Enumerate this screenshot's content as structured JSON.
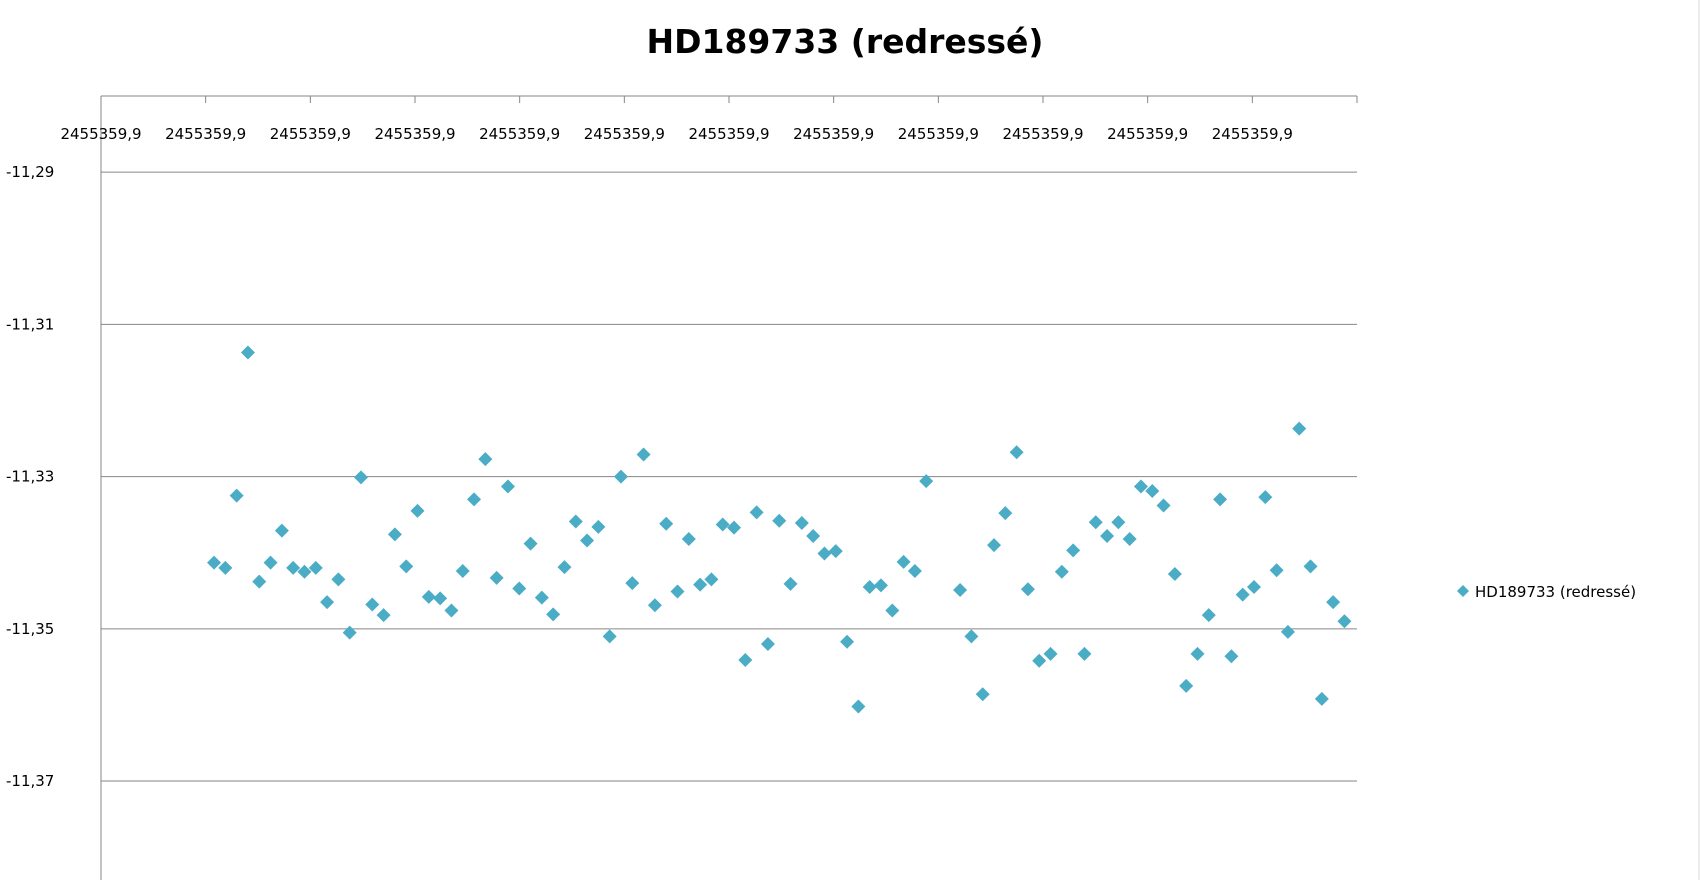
{
  "colors": {
    "marker": "#4bacc6",
    "gridline": "#868686",
    "axis": "#868686",
    "border": "#d9d9d9"
  },
  "marker_icon": "diamond",
  "chart_data": {
    "type": "scatter",
    "title": "HD189733 (redressé)",
    "xlabel": "",
    "ylabel": "",
    "grid": true,
    "legend_position": "right",
    "x_tick_labels": [
      "2455359,9",
      "2455359,9",
      "2455359,9",
      "2455359,9",
      "2455359,9",
      "2455359,9",
      "2455359,9",
      "2455359,9",
      "2455359,9",
      "2455359,9",
      "2455359,9",
      "2455359,9"
    ],
    "y_tick_labels": [
      "-11,29",
      "-11,31",
      "-11,33",
      "-11,35",
      "-11,37"
    ],
    "ylim": [
      -11.383,
      -11.28
    ],
    "xlim": [
      0,
      1
    ],
    "series": [
      {
        "name": "HD189733 (redressé)",
        "marker": "diamond",
        "points": [
          [
            0.09,
            -11.3413
          ],
          [
            0.099,
            -11.342
          ],
          [
            0.108,
            -11.3325
          ],
          [
            0.117,
            -11.3137
          ],
          [
            0.126,
            -11.3438
          ],
          [
            0.135,
            -11.3413
          ],
          [
            0.144,
            -11.3371
          ],
          [
            0.153,
            -11.342
          ],
          [
            0.162,
            -11.3425
          ],
          [
            0.171,
            -11.342
          ],
          [
            0.18,
            -11.3465
          ],
          [
            0.189,
            -11.3435
          ],
          [
            0.198,
            -11.3505
          ],
          [
            0.207,
            -11.3301
          ],
          [
            0.216,
            -11.3468
          ],
          [
            0.225,
            -11.3482
          ],
          [
            0.234,
            -11.3376
          ],
          [
            0.243,
            -11.3418
          ],
          [
            0.252,
            -11.3345
          ],
          [
            0.261,
            -11.3458
          ],
          [
            0.27,
            -11.346
          ],
          [
            0.279,
            -11.3476
          ],
          [
            0.288,
            -11.3424
          ],
          [
            0.297,
            -11.333
          ],
          [
            0.306,
            -11.3277
          ],
          [
            0.315,
            -11.3433
          ],
          [
            0.324,
            -11.3313
          ],
          [
            0.333,
            -11.3447
          ],
          [
            0.342,
            -11.3388
          ],
          [
            0.351,
            -11.3459
          ],
          [
            0.36,
            -11.3481
          ],
          [
            0.369,
            -11.3419
          ],
          [
            0.378,
            -11.3359
          ],
          [
            0.387,
            -11.3384
          ],
          [
            0.396,
            -11.3366
          ],
          [
            0.405,
            -11.351
          ],
          [
            0.414,
            -11.33
          ],
          [
            0.423,
            -11.344
          ],
          [
            0.432,
            -11.3271
          ],
          [
            0.441,
            -11.3469
          ],
          [
            0.45,
            -11.3362
          ],
          [
            0.459,
            -11.3451
          ],
          [
            0.468,
            -11.3382
          ],
          [
            0.477,
            -11.3442
          ],
          [
            0.486,
            -11.3435
          ],
          [
            0.495,
            -11.3363
          ],
          [
            0.504,
            -11.3367
          ],
          [
            0.513,
            -11.3541
          ],
          [
            0.522,
            -11.3347
          ],
          [
            0.531,
            -11.352
          ],
          [
            0.54,
            -11.3358
          ],
          [
            0.549,
            -11.3441
          ],
          [
            0.558,
            -11.3361
          ],
          [
            0.567,
            -11.3378
          ],
          [
            0.576,
            -11.3401
          ],
          [
            0.585,
            -11.3398
          ],
          [
            0.594,
            -11.3517
          ],
          [
            0.603,
            -11.3602
          ],
          [
            0.612,
            -11.3445
          ],
          [
            0.621,
            -11.3443
          ],
          [
            0.63,
            -11.3476
          ],
          [
            0.639,
            -11.3412
          ],
          [
            0.648,
            -11.3424
          ],
          [
            0.657,
            -11.3306
          ],
          [
            0.684,
            -11.3449
          ],
          [
            0.693,
            -11.351
          ],
          [
            0.702,
            -11.3586
          ],
          [
            0.711,
            -11.339
          ],
          [
            0.72,
            -11.3348
          ],
          [
            0.729,
            -11.3268
          ],
          [
            0.738,
            -11.3448
          ],
          [
            0.747,
            -11.3542
          ],
          [
            0.756,
            -11.3533
          ],
          [
            0.765,
            -11.3425
          ],
          [
            0.774,
            -11.3397
          ],
          [
            0.783,
            -11.3533
          ],
          [
            0.792,
            -11.336
          ],
          [
            0.801,
            -11.3378
          ],
          [
            0.81,
            -11.336
          ],
          [
            0.819,
            -11.3382
          ],
          [
            0.828,
            -11.3313
          ],
          [
            0.837,
            -11.3319
          ],
          [
            0.846,
            -11.3338
          ],
          [
            0.855,
            -11.3428
          ],
          [
            0.864,
            -11.3575
          ],
          [
            0.873,
            -11.3533
          ],
          [
            0.882,
            -11.3482
          ],
          [
            0.891,
            -11.333
          ],
          [
            0.9,
            -11.3536
          ],
          [
            0.909,
            -11.3455
          ],
          [
            0.918,
            -11.3445
          ],
          [
            0.927,
            -11.3327
          ],
          [
            0.936,
            -11.3423
          ],
          [
            0.945,
            -11.3504
          ],
          [
            0.954,
            -11.3237
          ],
          [
            0.963,
            -11.3418
          ],
          [
            0.972,
            -11.3592
          ],
          [
            0.981,
            -11.3465
          ],
          [
            0.99,
            -11.349
          ]
        ]
      }
    ]
  }
}
